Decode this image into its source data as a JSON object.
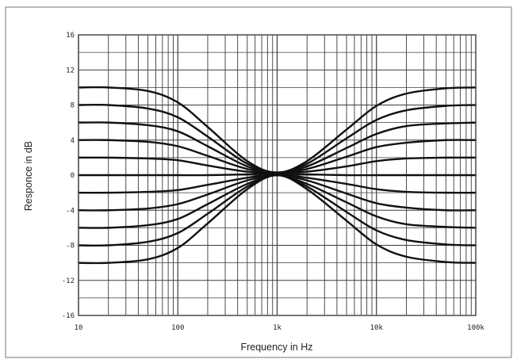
{
  "chart_data": {
    "type": "line",
    "title": "",
    "xlabel": "Frequency in Hz",
    "ylabel": "Responce in dB",
    "xscale": "log",
    "xlim": [
      10,
      100000
    ],
    "ylim": [
      -16,
      16
    ],
    "grid": true,
    "legend": "none",
    "x_tick_labels": [
      "10",
      "100",
      "1k",
      "10k",
      "100k"
    ],
    "y_tick_labels": [
      "16",
      "12",
      "8",
      "4",
      "0",
      "-4",
      "-8",
      "-12",
      "-16"
    ],
    "x": [
      10,
      20,
      50,
      100,
      200,
      500,
      1000,
      2000,
      5000,
      10000,
      20000,
      50000,
      100000
    ],
    "series": [
      {
        "values": [
          10,
          10,
          9.6,
          8.3,
          5.5,
          1.6,
          0.3,
          1.6,
          5.2,
          7.9,
          9.3,
          9.9,
          10
        ]
      },
      {
        "values": [
          8,
          8,
          7.6,
          6.6,
          4.4,
          1.3,
          0.3,
          1.3,
          4.2,
          6.3,
          7.4,
          7.9,
          8
        ]
      },
      {
        "values": [
          6,
          6,
          5.7,
          5.0,
          3.3,
          1.0,
          0.3,
          1.0,
          3.1,
          4.7,
          5.6,
          5.9,
          6
        ]
      },
      {
        "values": [
          4,
          4,
          3.8,
          3.3,
          2.2,
          0.7,
          0.3,
          0.7,
          2.1,
          3.2,
          3.7,
          4,
          4
        ]
      },
      {
        "values": [
          2,
          2,
          1.9,
          1.7,
          1.1,
          0.4,
          0.3,
          0.4,
          1.0,
          1.6,
          1.9,
          2,
          2
        ]
      },
      {
        "values": [
          0,
          0,
          0,
          0,
          0,
          0.1,
          0.2,
          0.1,
          0,
          0,
          0,
          0,
          0
        ]
      },
      {
        "values": [
          -2,
          -2,
          -1.9,
          -1.7,
          -1.1,
          -0.3,
          0.1,
          -0.3,
          -1.0,
          -1.6,
          -1.9,
          -2,
          -2
        ]
      },
      {
        "values": [
          -4,
          -4,
          -3.8,
          -3.3,
          -2.2,
          -0.6,
          0,
          -0.6,
          -2.1,
          -3.2,
          -3.7,
          -4,
          -4
        ]
      },
      {
        "values": [
          -6,
          -6,
          -5.7,
          -5.0,
          -3.3,
          -1.0,
          0,
          -1.0,
          -3.1,
          -4.7,
          -5.6,
          -5.9,
          -6
        ]
      },
      {
        "values": [
          -8,
          -8,
          -7.6,
          -6.6,
          -4.4,
          -1.3,
          0,
          -1.3,
          -4.2,
          -6.3,
          -7.4,
          -7.9,
          -8
        ]
      },
      {
        "values": [
          -10,
          -10,
          -9.6,
          -8.3,
          -5.5,
          -1.6,
          0,
          -1.6,
          -5.2,
          -7.9,
          -9.3,
          -9.9,
          -10
        ]
      }
    ],
    "colors": {
      "curve": "#111111",
      "grid": "#3a3a3a",
      "frame": "#555555"
    }
  }
}
